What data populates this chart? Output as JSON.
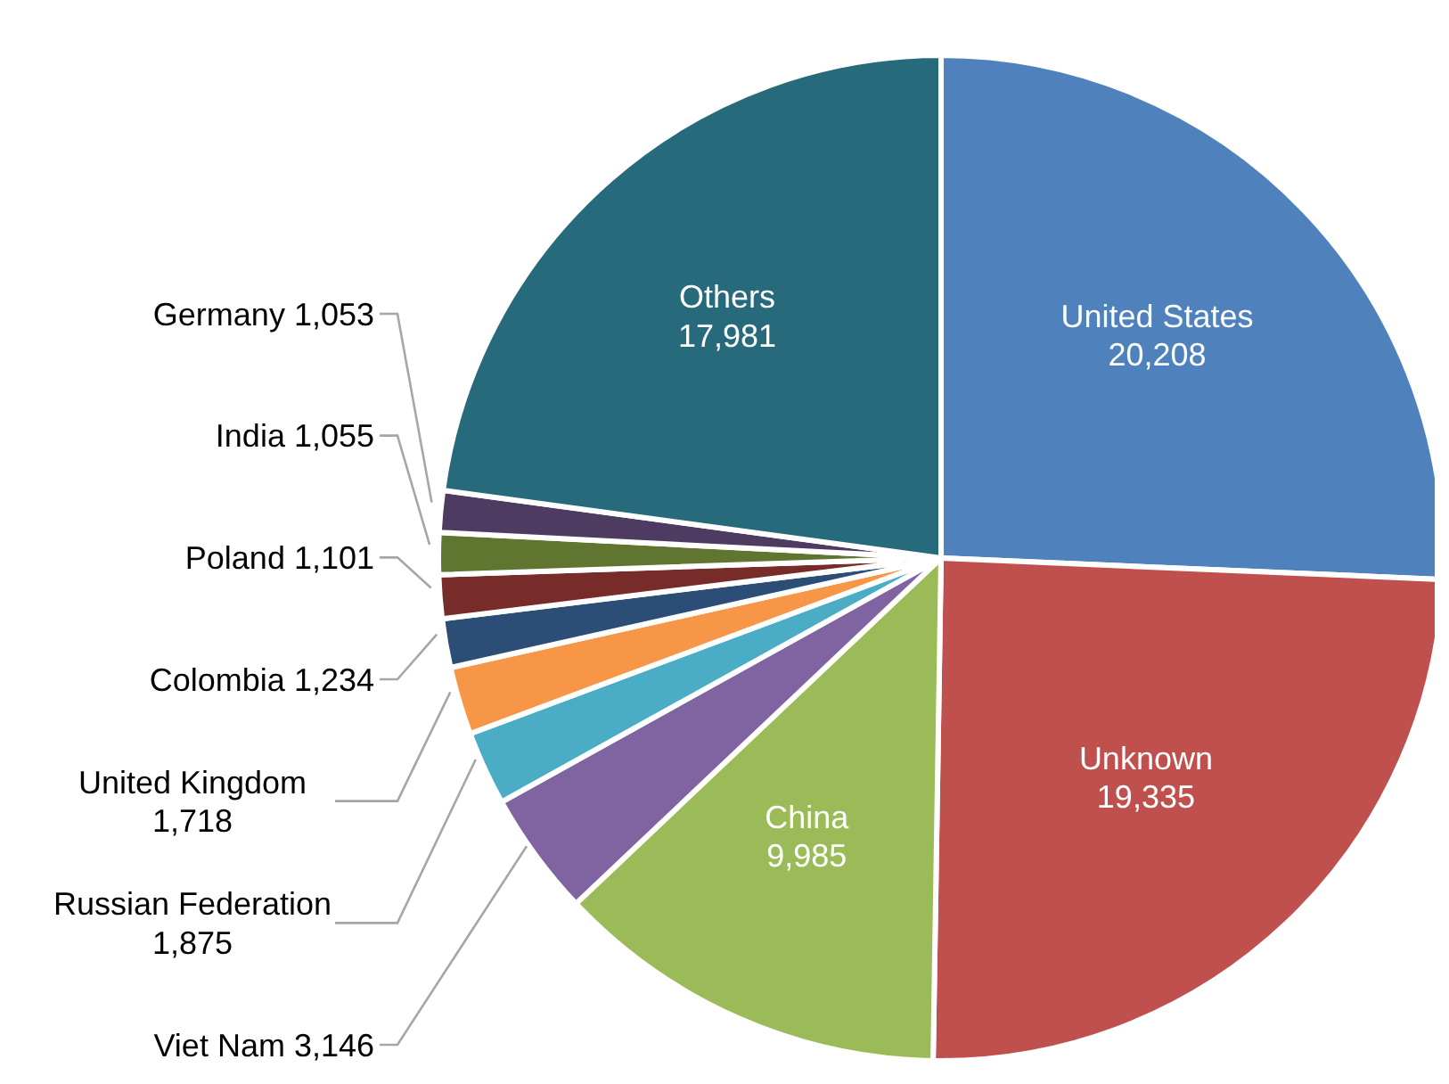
{
  "chart_data": {
    "type": "pie",
    "categories": [
      "United States",
      "Unknown",
      "China",
      "Viet Nam",
      "Russian Federation",
      "United Kingdom",
      "Colombia",
      "Poland",
      "India",
      "Germany",
      "Others"
    ],
    "values": [
      20208,
      19335,
      9985,
      3146,
      1875,
      1718,
      1234,
      1101,
      1055,
      1053,
      17981
    ],
    "colors": [
      "#4f81bd",
      "#c0504d",
      "#9bbb59",
      "#8064a2",
      "#4bacc6",
      "#f79646",
      "#2c4d75",
      "#772c2a",
      "#5f7530",
      "#4d3b62",
      "#276a7c"
    ],
    "value_labels": [
      "20,208",
      "19,335",
      "9,985",
      "3,146",
      "1,875",
      "1,718",
      "1,234",
      "1,101",
      "1,055",
      "1,053",
      "17,981"
    ],
    "legend": false
  }
}
